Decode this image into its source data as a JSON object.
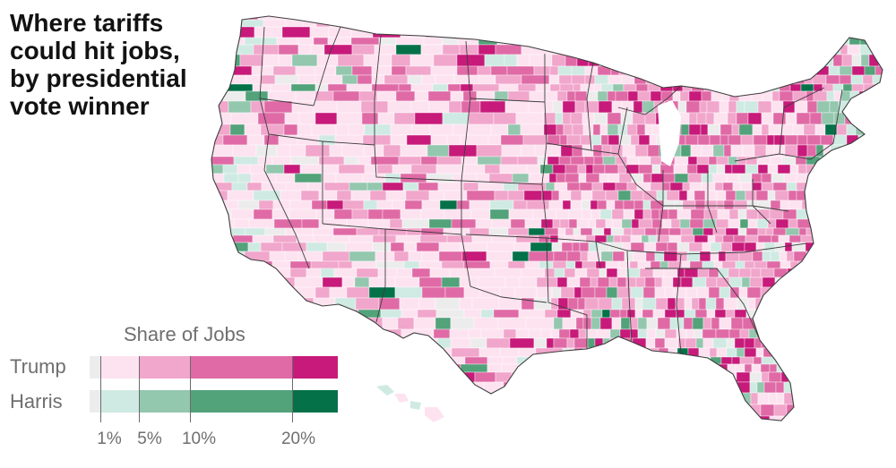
{
  "title_lines": [
    "Where tariffs",
    "could hit jobs,",
    "by presidential",
    "vote winner"
  ],
  "legend": {
    "title": "Share of Jobs",
    "rows": [
      {
        "label": "Trump",
        "colors": [
          "#ececec",
          "#fde3f0",
          "#f1a6cc",
          "#df6aa6",
          "#c71a7a"
        ]
      },
      {
        "label": "Harris",
        "colors": [
          "#ececec",
          "#cfeae2",
          "#93c7ae",
          "#52a27a",
          "#057148"
        ]
      }
    ],
    "ticks": [
      "1%",
      "5%",
      "10%",
      "20%"
    ]
  },
  "map": {
    "land_base_color": "#fbe1ef",
    "border_color": "#3d3d3d",
    "county_border_color": "#ffffff"
  }
}
